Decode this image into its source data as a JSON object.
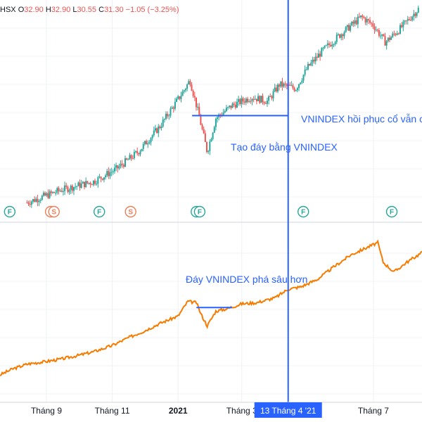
{
  "header": {
    "symbol_suffix": "HSX",
    "open_label": "O",
    "open": "32.90",
    "high_label": "H",
    "high": "32.90",
    "low_label": "L",
    "low": "30.55",
    "close_label": "C",
    "close": "31.30",
    "change": "−1.05 (−3.25%)"
  },
  "colors": {
    "up": "#26a69a",
    "down": "#ef5350",
    "line": "#f57c00",
    "annotation": "#2962ff",
    "badge_f": "#26a69a",
    "badge_s": "#ef7d57"
  },
  "crosshair": {
    "label": "13 Tháng 4 '21",
    "x_date": "2021-04-13"
  },
  "annotations": {
    "top_recovery": "VNINDEX hồi phục cổ vẫn ch",
    "top_bottom": "Tạo đáy bằng VNINDEX",
    "bottom_bottom": "Đáy VNINDEX phá sâu hơn"
  },
  "x_axis": {
    "ticks": [
      {
        "label": "Tháng 9",
        "date": "2020-09-01",
        "bold": false
      },
      {
        "label": "Tháng 11",
        "date": "2020-11-01",
        "bold": false
      },
      {
        "label": "2021",
        "date": "2021-01-01",
        "bold": true
      },
      {
        "label": "Tháng 3",
        "date": "2021-03-01",
        "bold": false
      },
      {
        "label": "Tháng 7",
        "date": "2021-07-01",
        "bold": false
      }
    ]
  },
  "badges": [
    {
      "letter": "F",
      "type": "F",
      "date": "2020-07-29"
    },
    {
      "letter": "S",
      "type": "S",
      "date": "2020-09-05"
    },
    {
      "letter": "S",
      "type": "S",
      "date": "2020-09-08"
    },
    {
      "letter": "F",
      "type": "F",
      "date": "2020-10-20"
    },
    {
      "letter": "S",
      "type": "S",
      "date": "2020-11-18"
    },
    {
      "letter": "F",
      "type": "F",
      "date": "2021-01-18"
    },
    {
      "letter": "F",
      "type": "F",
      "date": "2021-01-21"
    },
    {
      "letter": "F",
      "type": "F",
      "date": "2021-04-27"
    },
    {
      "letter": "F",
      "type": "F",
      "date": "2021-07-18"
    }
  ],
  "chart_data": [
    {
      "type": "candlestick",
      "title": "",
      "x_range": [
        "2020-07-20",
        "2021-08-15"
      ],
      "ohlc_points": [
        {
          "date": "2020-08-14",
          "close": 12.0
        },
        {
          "date": "2020-09-15",
          "close": 13.5
        },
        {
          "date": "2020-10-15",
          "close": 14.5
        },
        {
          "date": "2020-11-05",
          "close": 16.0
        },
        {
          "date": "2020-11-25",
          "close": 18.0
        },
        {
          "date": "2020-12-15",
          "close": 21.0
        },
        {
          "date": "2021-01-05",
          "close": 25.0
        },
        {
          "date": "2021-01-12",
          "close": 26.5
        },
        {
          "date": "2021-01-20",
          "close": 22.5
        },
        {
          "date": "2021-01-28",
          "close": 18.0
        },
        {
          "date": "2021-02-05",
          "close": 22.0
        },
        {
          "date": "2021-02-20",
          "close": 23.5
        },
        {
          "date": "2021-03-10",
          "close": 24.5
        },
        {
          "date": "2021-03-25",
          "close": 24.0
        },
        {
          "date": "2021-04-05",
          "close": 26.0
        },
        {
          "date": "2021-04-20",
          "close": 25.5
        },
        {
          "date": "2021-05-01",
          "close": 28.0
        },
        {
          "date": "2021-05-15",
          "close": 30.0
        },
        {
          "date": "2021-06-01",
          "close": 32.0
        },
        {
          "date": "2021-06-20",
          "close": 34.0
        },
        {
          "date": "2021-07-01",
          "close": 33.0
        },
        {
          "date": "2021-07-12",
          "close": 31.0
        },
        {
          "date": "2021-07-25",
          "close": 32.5
        },
        {
          "date": "2021-08-12",
          "close": 35.0
        }
      ],
      "y_range": [
        10,
        36
      ],
      "support_line": {
        "from": "2021-01-14",
        "to": "2021-04-13",
        "value": 22.3
      }
    },
    {
      "type": "line",
      "title": "",
      "series": [
        {
          "x": [
            "2020-07-20",
            "2020-08-01",
            "2020-08-15",
            "2020-09-01",
            "2020-09-15",
            "2020-10-01",
            "2020-10-15",
            "2020-11-01",
            "2020-11-15",
            "2020-12-01",
            "2020-12-15",
            "2021-01-01",
            "2021-01-10",
            "2021-01-18",
            "2021-01-22",
            "2021-01-28",
            "2021-02-05",
            "2021-02-15",
            "2021-03-01",
            "2021-03-15",
            "2021-04-01",
            "2021-04-13",
            "2021-04-25",
            "2021-05-10",
            "2021-05-25",
            "2021-06-10",
            "2021-06-25",
            "2021-07-05",
            "2021-07-10",
            "2021-07-20",
            "2021-08-01",
            "2021-08-15"
          ],
          "y": [
            880,
            905,
            925,
            935,
            945,
            960,
            975,
            1000,
            1030,
            1060,
            1090,
            1120,
            1180,
            1175,
            1130,
            1080,
            1140,
            1150,
            1170,
            1175,
            1195,
            1230,
            1240,
            1270,
            1320,
            1370,
            1400,
            1420,
            1340,
            1300,
            1340,
            1380
          ]
        }
      ],
      "y_range": [
        860,
        1440
      ],
      "support_line": {
        "from": "2021-01-18",
        "to": "2021-02-20",
        "value": 1155
      }
    }
  ]
}
